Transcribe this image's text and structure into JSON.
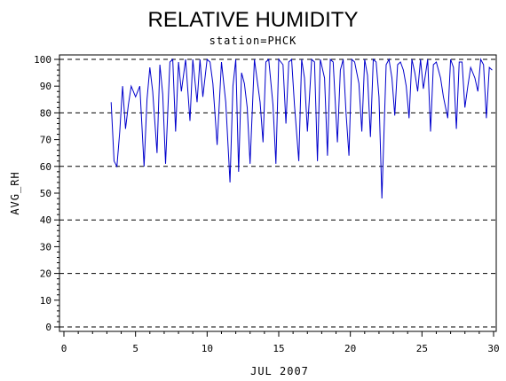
{
  "chart_data": {
    "type": "line",
    "title": "RELATIVE HUMIDITY",
    "subtitle": "station=PHCK",
    "xlabel": "JUL 2007",
    "ylabel": "AVG_RH",
    "xlim": [
      0,
      30
    ],
    "ylim": [
      0,
      100
    ],
    "xticks": [
      0,
      5,
      10,
      15,
      20,
      25,
      30
    ],
    "yticks": [
      0,
      10,
      20,
      30,
      40,
      50,
      60,
      70,
      80,
      90,
      100
    ],
    "grid_y_dashed": [
      0,
      20,
      40,
      60,
      80,
      100
    ],
    "line_color": "#0000cc",
    "series": [
      {
        "x": [
          3.3,
          3.5,
          3.7,
          3.9,
          4.1,
          4.3,
          4.5,
          4.7,
          5.0,
          5.3,
          5.6,
          5.8,
          6.0,
          6.2,
          6.5,
          6.7,
          6.9,
          7.1,
          7.4,
          7.6,
          7.8,
          8.0,
          8.2,
          8.5,
          8.8,
          9.0,
          9.3,
          9.5,
          9.7,
          10.0,
          10.2,
          10.4,
          10.7,
          11.0,
          11.3,
          11.6,
          11.8,
          12.0,
          12.2,
          12.4,
          12.6,
          12.8,
          13.0,
          13.3,
          13.5,
          13.7,
          13.9,
          14.1,
          14.3,
          14.6,
          14.8,
          15.0,
          15.3,
          15.5,
          15.7,
          15.9,
          16.1,
          16.4,
          16.6,
          16.8,
          17.0,
          17.3,
          17.5,
          17.7,
          17.9,
          18.2,
          18.4,
          18.6,
          18.8,
          19.1,
          19.3,
          19.5,
          19.7,
          19.9,
          20.1,
          20.3,
          20.6,
          20.8,
          21.0,
          21.2,
          21.4,
          21.6,
          21.8,
          22.0,
          22.2,
          22.5,
          22.7,
          22.9,
          23.1,
          23.3,
          23.5,
          23.7,
          23.9,
          24.1,
          24.3,
          24.5,
          24.7,
          24.9,
          25.1,
          25.4,
          25.6,
          25.8,
          26.0,
          26.3,
          26.5,
          26.8,
          27.0,
          27.2,
          27.4,
          27.6,
          27.8,
          28.0,
          28.2,
          28.4,
          28.7,
          28.9,
          29.1,
          29.3,
          29.5,
          29.7,
          29.9
        ],
        "y": [
          84,
          62,
          60,
          73,
          90,
          74,
          83,
          90,
          86,
          90,
          60,
          85,
          97,
          88,
          65,
          98,
          87,
          61,
          99,
          100,
          73,
          99,
          88,
          100,
          77,
          100,
          84,
          100,
          86,
          100,
          99,
          91,
          68,
          99,
          84,
          54,
          90,
          100,
          58,
          95,
          91,
          82,
          61,
          100,
          92,
          84,
          69,
          99,
          100,
          83,
          61,
          100,
          98,
          76,
          99,
          100,
          83,
          62,
          100,
          93,
          73,
          100,
          99,
          62,
          100,
          93,
          64,
          100,
          99,
          69,
          96,
          100,
          80,
          64,
          100,
          99,
          91,
          73,
          100,
          94,
          71,
          100,
          99,
          86,
          48,
          98,
          100,
          93,
          79,
          98,
          99,
          96,
          90,
          78,
          100,
          95,
          88,
          100,
          89,
          100,
          73,
          98,
          99,
          93,
          86,
          78,
          100,
          97,
          74,
          99,
          99,
          82,
          90,
          97,
          93,
          88,
          100,
          98,
          78,
          97,
          96
        ]
      }
    ]
  }
}
